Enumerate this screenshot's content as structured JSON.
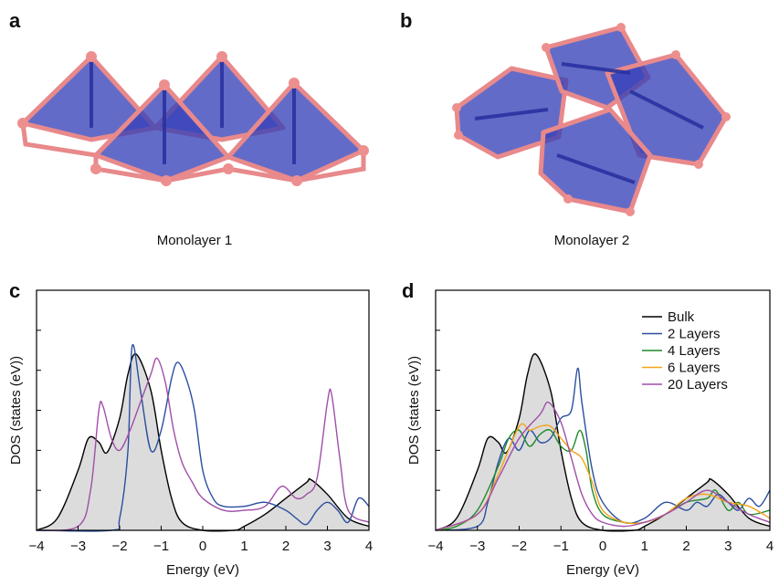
{
  "panels": [
    {
      "label": "a",
      "caption": "Monolayer 1"
    },
    {
      "label": "b",
      "caption": "Monolayer 2"
    }
  ],
  "chart_data": [
    {
      "type": "line",
      "label": "c",
      "xlabel": "Energy (eV)",
      "ylabel": "DOS (states (eV))",
      "xlim": [
        -4,
        4
      ],
      "ylim": [
        0,
        6
      ],
      "xticks": [
        {
          "value": -4,
          "label": "−4"
        },
        {
          "value": -3,
          "label": "−3"
        },
        {
          "value": -2,
          "label": "−2"
        },
        {
          "value": -1,
          "label": "−1"
        },
        0,
        1,
        2,
        3,
        4
      ],
      "yticks": [
        1,
        2,
        3,
        4,
        5
      ],
      "series": [
        {
          "color": "#000000",
          "fill_color": "#dcdcdc",
          "x": [
            -4,
            -3.5,
            -3,
            -2.75,
            -2.5,
            -2.3,
            -2,
            -1.8,
            -1.6,
            -1.25,
            -1,
            -0.75,
            -0.5,
            0,
            0.75,
            1,
            1.5,
            2,
            2.5,
            2.6,
            3,
            3.5,
            4
          ],
          "values": [
            0,
            0.3,
            1.5,
            2.3,
            2.2,
            1.95,
            2.8,
            3.9,
            4.4,
            3.5,
            2,
            0.8,
            0.2,
            0,
            0,
            0.1,
            0.4,
            0.8,
            1.2,
            1.27,
            0.9,
            0.3,
            0.1
          ]
        },
        {
          "color": "#2a4ea0",
          "x": [
            -4,
            -2.2,
            -2,
            -1.8,
            -1.7,
            -1.5,
            -1.25,
            -1,
            -0.75,
            -0.6,
            -0.4,
            -0.2,
            0,
            0.25,
            0.5,
            1,
            1.5,
            2,
            2.25,
            2.5,
            2.75,
            3,
            3.25,
            3.5,
            3.75,
            4
          ],
          "values": [
            0,
            0,
            0.3,
            2,
            4.6,
            3.5,
            2,
            2.5,
            3.8,
            4.2,
            3.8,
            3,
            1.5,
            0.8,
            0.6,
            0.6,
            0.7,
            0.5,
            0.3,
            0.15,
            0.5,
            0.7,
            0.5,
            0.2,
            0.8,
            0.6
          ]
        },
        {
          "color": "#a04fa8",
          "x": [
            -4,
            -3,
            -2.7,
            -2.5,
            -2.4,
            -2.2,
            -2,
            -1.75,
            -1.5,
            -1.25,
            -1.1,
            -0.9,
            -0.7,
            -0.5,
            -0.25,
            0,
            0.5,
            1,
            1.5,
            1.9,
            2.25,
            2.5,
            2.75,
            3,
            3.1,
            3.3,
            3.5,
            4
          ],
          "values": [
            0,
            0.1,
            1,
            3,
            3.1,
            2.3,
            2,
            2.5,
            3.2,
            3.9,
            4.3,
            3.7,
            2.5,
            1.7,
            1.2,
            0.8,
            0.5,
            0.5,
            0.6,
            1.1,
            0.8,
            0.9,
            1.3,
            3.2,
            3.4,
            1.8,
            0.5,
            0.2
          ]
        }
      ]
    },
    {
      "type": "line",
      "label": "d",
      "xlabel": "Energy (eV)",
      "ylabel": "DOS (states (eV))",
      "xlim": [
        -4,
        4
      ],
      "ylim": [
        0,
        6
      ],
      "xticks": [
        {
          "value": -4,
          "label": "−4"
        },
        {
          "value": -3,
          "label": "−3"
        },
        {
          "value": -2,
          "label": "−2"
        },
        {
          "value": -1,
          "label": "−1"
        },
        0,
        1,
        2,
        3,
        4
      ],
      "yticks": [
        1,
        2,
        3,
        4,
        5
      ],
      "legend": "upper right",
      "series": [
        {
          "name": "Bulk",
          "color": "#000000",
          "fill_color": "#dcdcdc",
          "x": [
            -4,
            -3.5,
            -3,
            -2.75,
            -2.5,
            -2.3,
            -2,
            -1.8,
            -1.6,
            -1.25,
            -1,
            -0.75,
            -0.5,
            0,
            0.75,
            1,
            1.5,
            2,
            2.5,
            2.6,
            3,
            3.5,
            4
          ],
          "values": [
            0,
            0.3,
            1.5,
            2.3,
            2.2,
            1.95,
            2.8,
            3.9,
            4.4,
            3.5,
            2,
            0.8,
            0.2,
            0,
            0,
            0.1,
            0.4,
            0.8,
            1.2,
            1.27,
            0.9,
            0.3,
            0.1
          ]
        },
        {
          "name": "2 Layers",
          "color": "#2a4ea0",
          "x": [
            -4,
            -3,
            -2.75,
            -2.5,
            -2.25,
            -2,
            -1.75,
            -1.5,
            -1.25,
            -1,
            -0.75,
            -0.6,
            -0.5,
            -0.25,
            0,
            0.5,
            1,
            1.5,
            2,
            2.25,
            2.5,
            2.75,
            3,
            3.25,
            3.5,
            3.75,
            4
          ],
          "values": [
            0,
            0.1,
            0.7,
            1.7,
            2.3,
            2.0,
            2.5,
            2.2,
            2.3,
            2.8,
            3.0,
            4.05,
            3.2,
            1.5,
            0.7,
            0.2,
            0.3,
            0.7,
            0.5,
            0.7,
            0.6,
            0.9,
            0.7,
            0.5,
            0.8,
            0.6,
            1.0
          ]
        },
        {
          "name": "4 Layers",
          "color": "#1f8a2b",
          "x": [
            -4,
            -3.5,
            -3,
            -2.5,
            -2.25,
            -2,
            -1.75,
            -1.5,
            -1.25,
            -1,
            -0.75,
            -0.55,
            -0.4,
            -0.25,
            0,
            0.5,
            1,
            1.5,
            2,
            2.5,
            2.7,
            3,
            3.25,
            3.5,
            4
          ],
          "values": [
            0,
            0.1,
            0.5,
            1.6,
            2.3,
            2.5,
            2.1,
            2.4,
            2.5,
            2.1,
            2.0,
            2.5,
            2.0,
            1.0,
            0.4,
            0.2,
            0.2,
            0.4,
            0.7,
            0.8,
            1.0,
            0.5,
            0.7,
            0.4,
            0.5
          ]
        },
        {
          "name": "6 Layers",
          "color": "#f5a31a",
          "x": [
            -4,
            -3,
            -2.5,
            -2,
            -1.75,
            -1.5,
            -1.25,
            -1,
            -0.75,
            -0.5,
            -0.25,
            0,
            0.5,
            1,
            1.5,
            2,
            2.5,
            3,
            3.5,
            4
          ],
          "values": [
            0,
            0.4,
            1.4,
            2.6,
            2.5,
            2.6,
            2.6,
            2.3,
            2.0,
            1.8,
            1.2,
            0.5,
            0.2,
            0.2,
            0.4,
            0.8,
            0.9,
            0.7,
            0.6,
            0.3
          ]
        },
        {
          "name": "20 Layers",
          "color": "#a04fa8",
          "x": [
            -4,
            -3,
            -2.5,
            -2,
            -1.5,
            -1.3,
            -1,
            -0.75,
            -0.5,
            -0.25,
            0,
            0.5,
            1,
            1.5,
            2,
            2.5,
            3,
            3.5,
            4
          ],
          "values": [
            0,
            0.4,
            1.3,
            2.3,
            2.9,
            3.2,
            2.7,
            1.8,
            0.9,
            0.4,
            0.2,
            0.1,
            0.2,
            0.4,
            0.7,
            1.0,
            0.7,
            0.4,
            0.2
          ]
        }
      ]
    }
  ]
}
